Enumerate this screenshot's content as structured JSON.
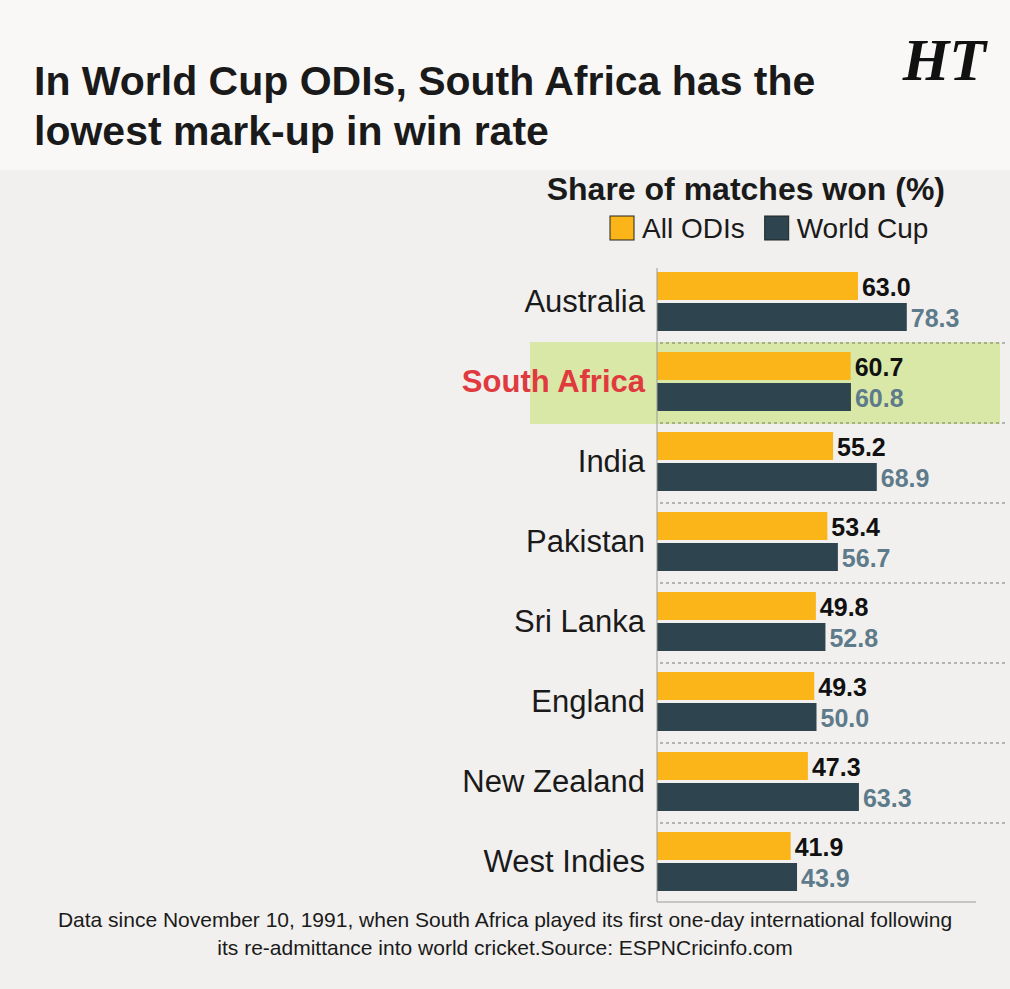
{
  "chart_data": {
    "type": "bar",
    "orientation": "horizontal",
    "title": "In World Cup ODIs, South Africa has the lowest mark-up in win rate",
    "subtitle": "Share of matches won (%)",
    "note": "Data since November 10, 1991, when South Africa played its first one-day international following its re-admittance into world cricket.Source: ESPNCricinfo.com",
    "annotations": [
      "HT"
    ],
    "categories": [
      "Australia",
      "South Africa",
      "India",
      "Pakistan",
      "Sri Lanka",
      "England",
      "New Zealand",
      "West Indies"
    ],
    "series": [
      {
        "name": "All ODIs",
        "color": "#fbb519",
        "values": [
          63.0,
          60.7,
          55.2,
          53.4,
          49.8,
          49.3,
          47.3,
          41.9
        ],
        "value_labels": [
          "63.0",
          "60.7",
          "55.2",
          "53.4",
          "49.8",
          "49.3",
          "47.3",
          "41.9"
        ]
      },
      {
        "name": "World Cup",
        "color": "#2e444f",
        "values": [
          78.3,
          60.8,
          68.9,
          56.7,
          52.8,
          50.0,
          63.3,
          43.9
        ],
        "value_labels": [
          "78.3",
          "60.8",
          "68.9",
          "56.7",
          "52.8",
          "50.0",
          "63.3",
          "43.9"
        ]
      }
    ],
    "xlim": [
      0,
      100
    ],
    "data_labels": true,
    "tick_labels": false,
    "legend": "top-right",
    "grid": false
  }
}
